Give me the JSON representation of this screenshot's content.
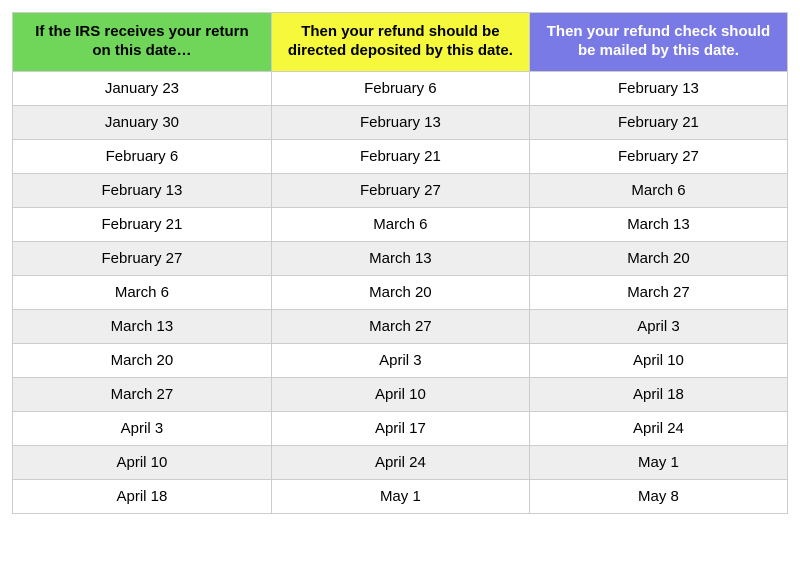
{
  "table": {
    "type": "table",
    "border_color": "#cccccc",
    "header_fontsize": 15,
    "body_fontsize": 15,
    "row_bg_even": "#ffffff",
    "row_bg_odd": "#eeeeee",
    "body_text_color": "#000000",
    "columns": [
      {
        "label": "If the IRS receives your return on this date…",
        "bg": "#70d65a",
        "text_color": "#000000",
        "width_pct": 33.4
      },
      {
        "label": "Then your refund should be directed deposited by this date.",
        "bg": "#f6f93b",
        "text_color": "#000000",
        "width_pct": 33.3
      },
      {
        "label": "Then your refund check should be mailed by this date.",
        "bg": "#7a7ae6",
        "text_color": "#ffffff",
        "width_pct": 33.3
      }
    ],
    "rows": [
      [
        "January 23",
        "February 6",
        "February 13"
      ],
      [
        "January 30",
        "February 13",
        "February 21"
      ],
      [
        "February 6",
        "February 21",
        "February 27"
      ],
      [
        "February 13",
        "February 27",
        "March 6"
      ],
      [
        "February 21",
        "March 6",
        "March 13"
      ],
      [
        "February 27",
        "March 13",
        "March 20"
      ],
      [
        "March 6",
        "March 20",
        "March 27"
      ],
      [
        "March 13",
        "March 27",
        "April 3"
      ],
      [
        "March 20",
        "April 3",
        "April 10"
      ],
      [
        "March 27",
        "April 10",
        "April 18"
      ],
      [
        "April 3",
        "April 17",
        "April 24"
      ],
      [
        "April 10",
        "April 24",
        "May 1"
      ],
      [
        "April 18",
        "May 1",
        "May 8"
      ]
    ]
  }
}
